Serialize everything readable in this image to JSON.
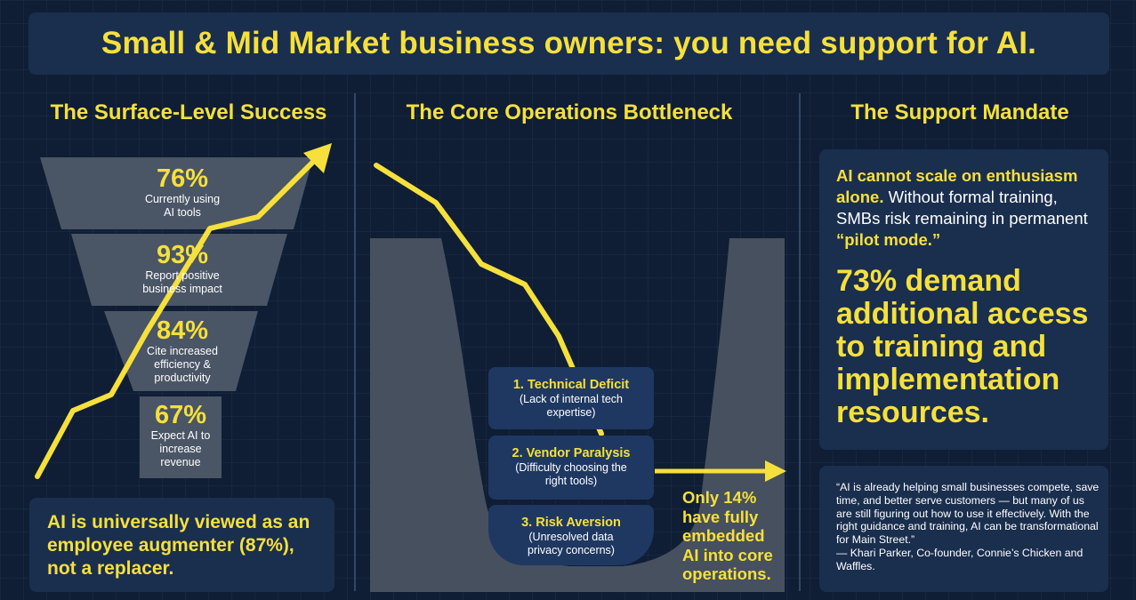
{
  "title": "Small & Mid Market business owners: you need support for AI.",
  "columns": {
    "left_heading": "The Surface-Level Success",
    "middle_heading": "The Core Operations Bottleneck",
    "right_heading": "The Support Mandate"
  },
  "funnel": [
    {
      "pct": "76%",
      "label_lines": [
        "Currently using",
        "AI tools"
      ]
    },
    {
      "pct": "93%",
      "label_lines": [
        "Report positive",
        "business impact"
      ]
    },
    {
      "pct": "84%",
      "label_lines": [
        "Cite increased",
        "efficiency &",
        "productivity"
      ]
    },
    {
      "pct": "67%",
      "label_lines": [
        "Expect AI to",
        "increase",
        "revenue"
      ]
    }
  ],
  "augmenter_text": "AI is universally viewed as an employee augmenter (87%), not a replacer.",
  "bottlenecks": [
    {
      "heading": "1. Technical Deficit",
      "sub_lines": [
        "(Lack of internal tech",
        "expertise)"
      ]
    },
    {
      "heading": "2. Vendor Paralysis",
      "sub_lines": [
        "(Difficulty choosing the",
        "right tools)"
      ]
    },
    {
      "heading": "3. Risk Aversion",
      "sub_lines": [
        "(Unresolved data",
        "privacy concerns)"
      ]
    }
  ],
  "only14_lines": [
    "Only 14%",
    "have fully",
    "embedded",
    "AI into core",
    "operations."
  ],
  "mandate": {
    "intro_highlight": "AI cannot scale on enthusiasm alone.",
    "intro_rest": " Without formal training, SMBs risk remaining in permanent ",
    "intro_quote": "“pilot mode.”",
    "big_stat": "73% demand additional access to training and implementation resources."
  },
  "quote": {
    "text": "“AI is already helping small businesses compete, save time, and better serve customers — but many of us are still figuring out how to use it effectively. With the right guidance and training, AI can be transformational for Main Street.”",
    "attribution": "— Khari Parker, Co-founder, Connie’s Chicken and Waffles."
  },
  "colors": {
    "background": "#0f1e35",
    "panel": "#1a2e4e",
    "accent_yellow": "#f5e03c",
    "funnel_gray": "#4a5566",
    "valley_gray": "#46505f"
  }
}
